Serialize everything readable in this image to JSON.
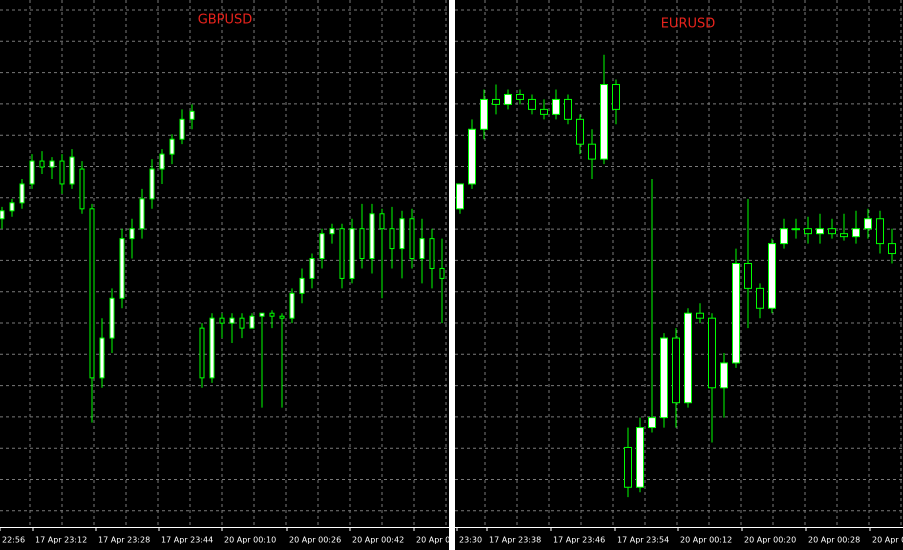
{
  "chart_data": [
    {
      "type": "candlestick",
      "title": "GBPUSD",
      "color": "#00ff00",
      "bull_fill": "#ffffff",
      "bear_fill": "#000000",
      "grid": true,
      "ylim": [
        0,
        530
      ],
      "x_labels": [
        "22:56",
        "17 Apr 23:12",
        "17 Apr 23:28",
        "17 Apr 23:44",
        "20 Apr 00:10",
        "20 Apr 00:26",
        "20 Apr 00:42",
        "20 Apr 0"
      ],
      "open": [
        310,
        318,
        326,
        345,
        368,
        362,
        368,
        345,
        360,
        320,
        150,
        190,
        230,
        290,
        300,
        330,
        360,
        375,
        390,
        410,
        200,
        150,
        210,
        205,
        210,
        200,
        212,
        215,
        212,
        210,
        235,
        250,
        270,
        295,
        300,
        250,
        300,
        270,
        315,
        300,
        280,
        310,
        270,
        290,
        260
      ],
      "high": [
        322,
        330,
        350,
        375,
        378,
        372,
        375,
        380,
        368,
        325,
        210,
        240,
        300,
        310,
        340,
        370,
        380,
        395,
        420,
        425,
        205,
        215,
        215,
        215,
        215,
        215,
        215,
        218,
        215,
        240,
        260,
        275,
        300,
        305,
        305,
        310,
        325,
        325,
        320,
        322,
        318,
        320,
        310,
        300,
        290
      ],
      "low": [
        300,
        312,
        320,
        340,
        355,
        350,
        335,
        340,
        315,
        105,
        140,
        175,
        220,
        270,
        290,
        320,
        345,
        365,
        385,
        400,
        140,
        145,
        190,
        185,
        190,
        200,
        120,
        200,
        120,
        205,
        225,
        240,
        260,
        285,
        240,
        245,
        260,
        255,
        230,
        260,
        250,
        260,
        245,
        240,
        205
      ],
      "close": [
        318,
        326,
        345,
        368,
        362,
        368,
        345,
        372,
        320,
        150,
        190,
        230,
        290,
        300,
        330,
        360,
        375,
        390,
        410,
        418,
        150,
        210,
        205,
        210,
        200,
        212,
        215,
        212,
        210,
        235,
        250,
        270,
        295,
        300,
        250,
        300,
        270,
        315,
        300,
        280,
        310,
        270,
        290,
        260,
        250
      ]
    },
    {
      "type": "candlestick",
      "title": "EURUSD",
      "color": "#00ff00",
      "bull_fill": "#ffffff",
      "bear_fill": "#000000",
      "grid": true,
      "ylim": [
        0,
        530
      ],
      "x_labels": [
        "23:30",
        "17 Apr 23:38",
        "17 Apr 23:46",
        "17 Apr 23:54",
        "20 Apr 00:12",
        "20 Apr 00:20",
        "20 Apr 00:28",
        "20 Apr 00:3"
      ],
      "open": [
        320,
        345,
        400,
        430,
        425,
        435,
        430,
        420,
        415,
        430,
        410,
        385,
        370,
        445,
        80,
        40,
        100,
        110,
        190,
        125,
        215,
        210,
        140,
        165,
        265,
        240,
        220,
        285,
        300,
        300,
        295,
        300,
        295,
        292,
        300,
        310,
        285
      ],
      "high": [
        345,
        410,
        440,
        445,
        440,
        440,
        435,
        430,
        440,
        435,
        415,
        400,
        475,
        450,
        100,
        110,
        350,
        195,
        200,
        220,
        225,
        215,
        175,
        280,
        330,
        245,
        290,
        310,
        310,
        312,
        315,
        310,
        315,
        318,
        320,
        318,
        300
      ],
      "low": [
        315,
        340,
        390,
        415,
        420,
        425,
        415,
        410,
        410,
        405,
        375,
        350,
        365,
        405,
        30,
        35,
        95,
        100,
        100,
        120,
        205,
        85,
        110,
        160,
        200,
        210,
        215,
        280,
        290,
        285,
        285,
        290,
        288,
        285,
        290,
        275,
        265
      ],
      "close": [
        345,
        400,
        430,
        425,
        435,
        430,
        420,
        415,
        430,
        410,
        385,
        370,
        445,
        420,
        40,
        100,
        110,
        190,
        125,
        215,
        210,
        140,
        165,
        265,
        240,
        220,
        285,
        300,
        300,
        295,
        300,
        295,
        292,
        300,
        310,
        285,
        275
      ]
    }
  ]
}
